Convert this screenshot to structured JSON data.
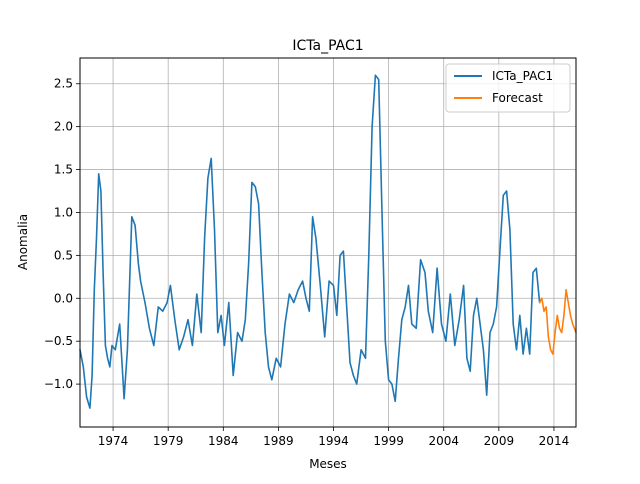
{
  "chart_data": {
    "type": "line",
    "title": "ICTa_PAC1",
    "xlabel": "Meses",
    "ylabel": "Anomalia",
    "xlim": [
      1971.0,
      2016.0
    ],
    "ylim": [
      -1.5,
      2.8
    ],
    "grid": true,
    "legend_position": "top-right",
    "x_ticks": [
      1974,
      1979,
      1984,
      1989,
      1994,
      1999,
      2004,
      2009,
      2014
    ],
    "x_tick_labels": [
      "1974",
      "1979",
      "1984",
      "1989",
      "1994",
      "1999",
      "2004",
      "2009",
      "2014"
    ],
    "y_ticks": [
      -1.0,
      -0.5,
      0.0,
      0.5,
      1.0,
      1.5,
      2.0,
      2.5
    ],
    "y_tick_labels": [
      "−1.0",
      "−0.5",
      "0.0",
      "0.5",
      "1.0",
      "1.5",
      "2.0",
      "2.5"
    ],
    "series": [
      {
        "name": "ICTa_PAC1",
        "color": "#1f77b4",
        "x": [
          1971.0,
          1971.3,
          1971.6,
          1971.9,
          1972.1,
          1972.3,
          1972.5,
          1972.7,
          1972.9,
          1973.1,
          1973.3,
          1973.5,
          1973.7,
          1973.9,
          1974.2,
          1974.6,
          1975.0,
          1975.3,
          1975.7,
          1976.0,
          1976.3,
          1976.5,
          1976.9,
          1977.3,
          1977.7,
          1978.1,
          1978.5,
          1978.9,
          1979.2,
          1979.6,
          1980.0,
          1980.4,
          1980.8,
          1981.2,
          1981.6,
          1982.0,
          1982.3,
          1982.6,
          1982.9,
          1983.2,
          1983.5,
          1983.8,
          1984.1,
          1984.5,
          1984.9,
          1985.3,
          1985.7,
          1986.0,
          1986.3,
          1986.6,
          1986.9,
          1987.2,
          1987.5,
          1987.8,
          1988.1,
          1988.4,
          1988.8,
          1989.2,
          1989.6,
          1990.0,
          1990.4,
          1990.8,
          1991.2,
          1991.5,
          1991.8,
          1992.1,
          1992.4,
          1992.8,
          1993.2,
          1993.6,
          1994.0,
          1994.3,
          1994.6,
          1994.9,
          1995.2,
          1995.5,
          1995.8,
          1996.1,
          1996.5,
          1996.9,
          1997.2,
          1997.5,
          1997.8,
          1998.1,
          1998.4,
          1998.7,
          1999.0,
          1999.3,
          1999.6,
          1999.9,
          2000.2,
          2000.5,
          2000.8,
          2001.1,
          2001.5,
          2001.9,
          2002.3,
          2002.6,
          2003.0,
          2003.4,
          2003.8,
          2004.2,
          2004.6,
          2005.0,
          2005.4,
          2005.8,
          2006.1,
          2006.4,
          2006.7,
          2007.0,
          2007.3,
          2007.6,
          2007.9,
          2008.2,
          2008.5,
          2008.8,
          2009.1,
          2009.4,
          2009.7,
          2010.0,
          2010.3,
          2010.6,
          2010.9,
          2011.2,
          2011.5,
          2011.8,
          2012.1,
          2012.4,
          2012.7
        ],
        "y": [
          -0.6,
          -0.8,
          -1.15,
          -1.28,
          -0.9,
          0.1,
          0.7,
          1.45,
          1.25,
          0.3,
          -0.55,
          -0.7,
          -0.8,
          -0.55,
          -0.6,
          -0.3,
          -1.17,
          -0.6,
          0.95,
          0.85,
          0.4,
          0.2,
          -0.05,
          -0.35,
          -0.55,
          -0.1,
          -0.15,
          -0.05,
          0.15,
          -0.25,
          -0.6,
          -0.45,
          -0.25,
          -0.55,
          0.05,
          -0.4,
          0.7,
          1.4,
          1.63,
          0.8,
          -0.4,
          -0.2,
          -0.55,
          -0.05,
          -0.9,
          -0.4,
          -0.5,
          -0.25,
          0.4,
          1.35,
          1.3,
          1.1,
          0.3,
          -0.4,
          -0.8,
          -0.95,
          -0.7,
          -0.8,
          -0.3,
          0.05,
          -0.05,
          0.1,
          0.2,
          0.0,
          -0.15,
          0.95,
          0.7,
          0.15,
          -0.45,
          0.2,
          0.15,
          -0.2,
          0.5,
          0.55,
          -0.1,
          -0.75,
          -0.9,
          -1.0,
          -0.6,
          -0.7,
          0.5,
          2.0,
          2.6,
          2.55,
          1.0,
          -0.5,
          -0.95,
          -1.0,
          -1.2,
          -0.7,
          -0.25,
          -0.1,
          0.15,
          -0.3,
          -0.35,
          0.45,
          0.3,
          -0.15,
          -0.4,
          0.35,
          -0.3,
          -0.5,
          0.05,
          -0.55,
          -0.25,
          0.15,
          -0.7,
          -0.85,
          -0.2,
          0.0,
          -0.3,
          -0.6,
          -1.13,
          -0.4,
          -0.3,
          -0.1,
          0.55,
          1.2,
          1.25,
          0.8,
          -0.3,
          -0.6,
          -0.2,
          -0.65,
          -0.35,
          -0.65,
          0.3,
          0.35,
          -0.05
        ]
      },
      {
        "name": "Forecast",
        "color": "#ff7f0e",
        "x": [
          2012.7,
          2012.9,
          2013.1,
          2013.3,
          2013.5,
          2013.7,
          2013.9,
          2014.1,
          2014.3,
          2014.5,
          2014.7,
          2014.9,
          2015.1,
          2015.3,
          2015.5,
          2015.7,
          2016.0
        ],
        "y": [
          -0.05,
          0.0,
          -0.15,
          -0.1,
          -0.45,
          -0.6,
          -0.65,
          -0.4,
          -0.2,
          -0.35,
          -0.4,
          -0.2,
          0.1,
          -0.05,
          -0.2,
          -0.3,
          -0.4
        ]
      }
    ]
  }
}
